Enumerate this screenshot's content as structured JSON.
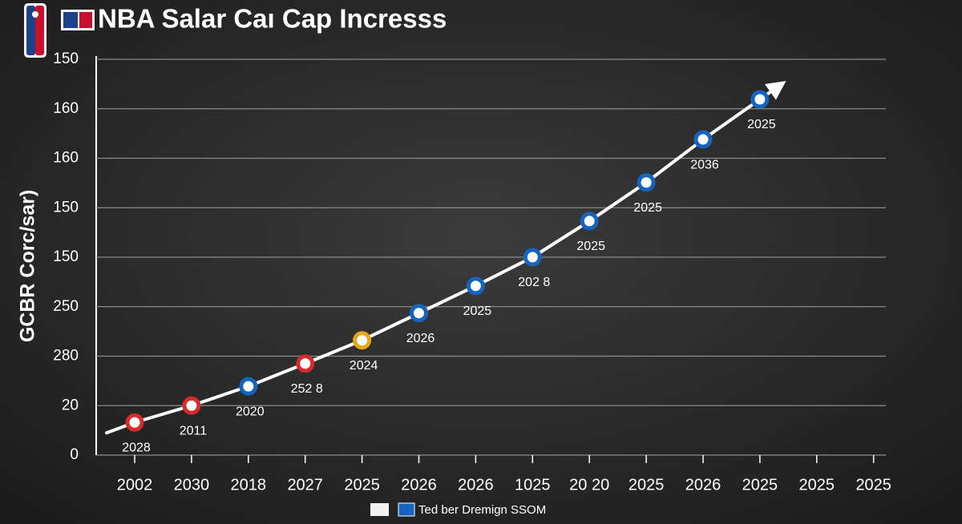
{
  "chart_data": {
    "type": "line",
    "title": "NBA Salar Caı  Cap Incresss",
    "y_axis_label": "GCBR Corc/sar)",
    "categories": [
      "2002",
      "2030",
      "2018",
      "2027",
      "2025",
      "2026",
      "2026",
      "1025",
      "20 20",
      "2025",
      "2026",
      "2025",
      "2025",
      "2025"
    ],
    "ylim": [
      0,
      8
    ],
    "yticks": [
      {
        "value": 0,
        "label": "0"
      },
      {
        "value": 1,
        "label": "20"
      },
      {
        "value": 2,
        "label": "280"
      },
      {
        "value": 3,
        "label": "250"
      },
      {
        "value": 4,
        "label": "150"
      },
      {
        "value": 5,
        "label": "150"
      },
      {
        "value": 6,
        "label": "160"
      },
      {
        "value": 7,
        "label": "160"
      },
      {
        "value": 8,
        "label": "150"
      }
    ],
    "grid": true,
    "series": [
      {
        "name": "Ted ber Dremign SSOM",
        "color": "#1565c0",
        "line_color": "#ffffff",
        "values": [
          0.66,
          1.0,
          1.39,
          1.85,
          2.32,
          2.87,
          3.42,
          4.0,
          4.73,
          5.51,
          6.38,
          7.19,
          null,
          null
        ],
        "point_colors": [
          "#d62b2b",
          "#d62b2b",
          "#1565c0",
          "#d62b2b",
          "#e6a817",
          "#1565c0",
          "#1565c0",
          "#1565c0",
          "#1565c0",
          "#1565c0",
          "#1565c0",
          "#1565c0",
          null,
          null
        ],
        "point_labels": [
          "2028",
          "2011",
          "2020",
          "252 8",
          "2024",
          "2026",
          "2025",
          "202 8",
          "2025",
          "2025",
          "2036",
          "2025",
          null,
          null
        ]
      }
    ]
  }
}
